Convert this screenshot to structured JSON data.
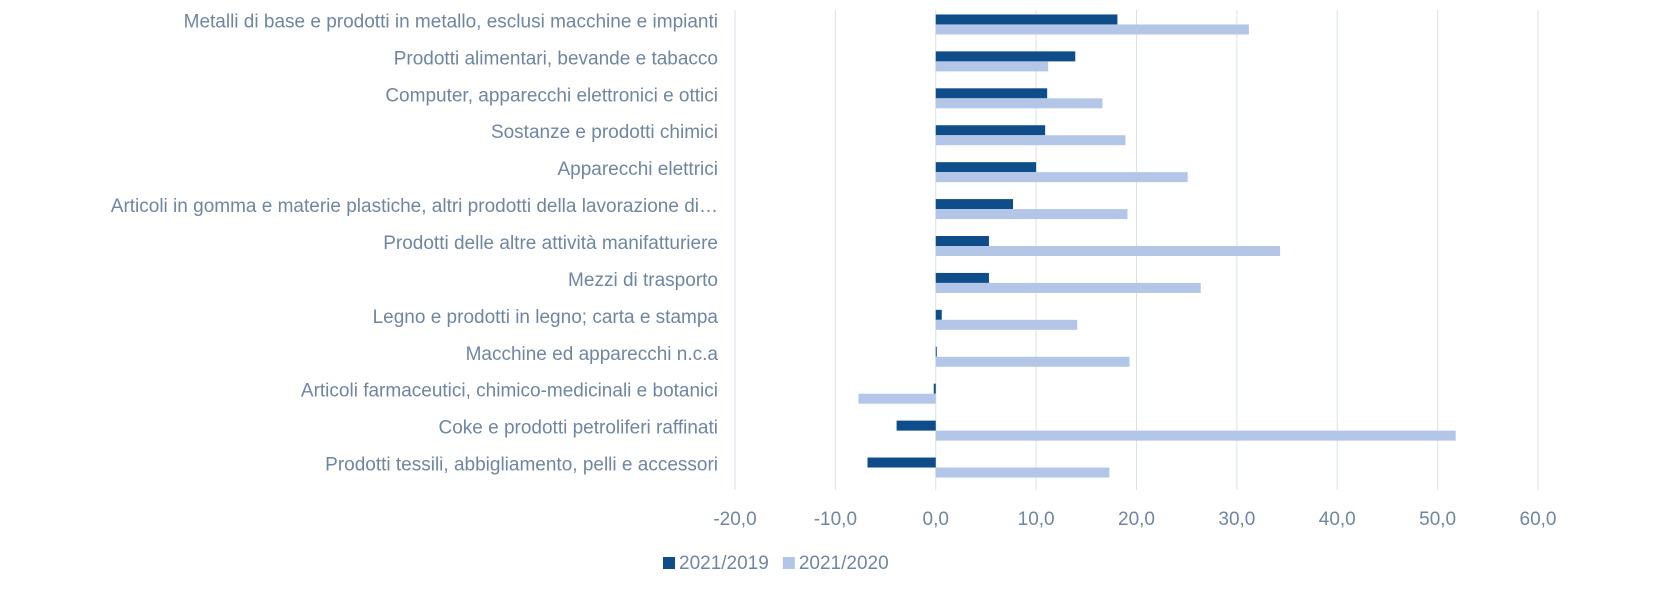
{
  "chart_data": {
    "type": "hbar",
    "categories": [
      "Metalli di base e prodotti in metallo, esclusi macchine e impianti",
      "Prodotti alimentari, bevande e tabacco",
      "Computer, apparecchi elettronici e ottici",
      "Sostanze e prodotti chimici",
      "Apparecchi elettrici",
      "Articoli in gomma e materie plastiche, altri prodotti della lavorazione di…",
      "Prodotti delle altre attività manifatturiere",
      "Mezzi di trasporto",
      "Legno e prodotti in legno; carta e stampa",
      "Macchine ed apparecchi  n.c.a",
      "Articoli farmaceutici, chimico-medicinali e botanici",
      "Coke e  prodotti petroliferi raffinati",
      "Prodotti tessili, abbigliamento, pelli e accessori"
    ],
    "series": [
      {
        "name": "2021/2019",
        "color": "#0e4d8a",
        "values": [
          18.1,
          13.9,
          11.1,
          10.9,
          10.0,
          7.7,
          5.3,
          5.3,
          0.6,
          0.1,
          -0.2,
          -3.9,
          -6.8
        ]
      },
      {
        "name": "2021/2020",
        "color": "#b4c6e7",
        "values": [
          31.2,
          11.2,
          16.6,
          18.9,
          25.1,
          19.1,
          34.3,
          26.4,
          14.1,
          19.3,
          -7.7,
          51.8,
          17.3
        ]
      }
    ],
    "xlim": [
      -20,
      60
    ],
    "xticks": [
      {
        "value": -20,
        "label": "-20,0"
      },
      {
        "value": -10,
        "label": "-10,0"
      },
      {
        "value": 0,
        "label": "0,0"
      },
      {
        "value": 10,
        "label": "10,0"
      },
      {
        "value": 20,
        "label": "20,0"
      },
      {
        "value": 30,
        "label": "30,0"
      },
      {
        "value": 40,
        "label": "40,0"
      },
      {
        "value": 50,
        "label": "50,0"
      },
      {
        "value": 60,
        "label": "60,0"
      }
    ],
    "grid": true,
    "legend": "bottom"
  }
}
